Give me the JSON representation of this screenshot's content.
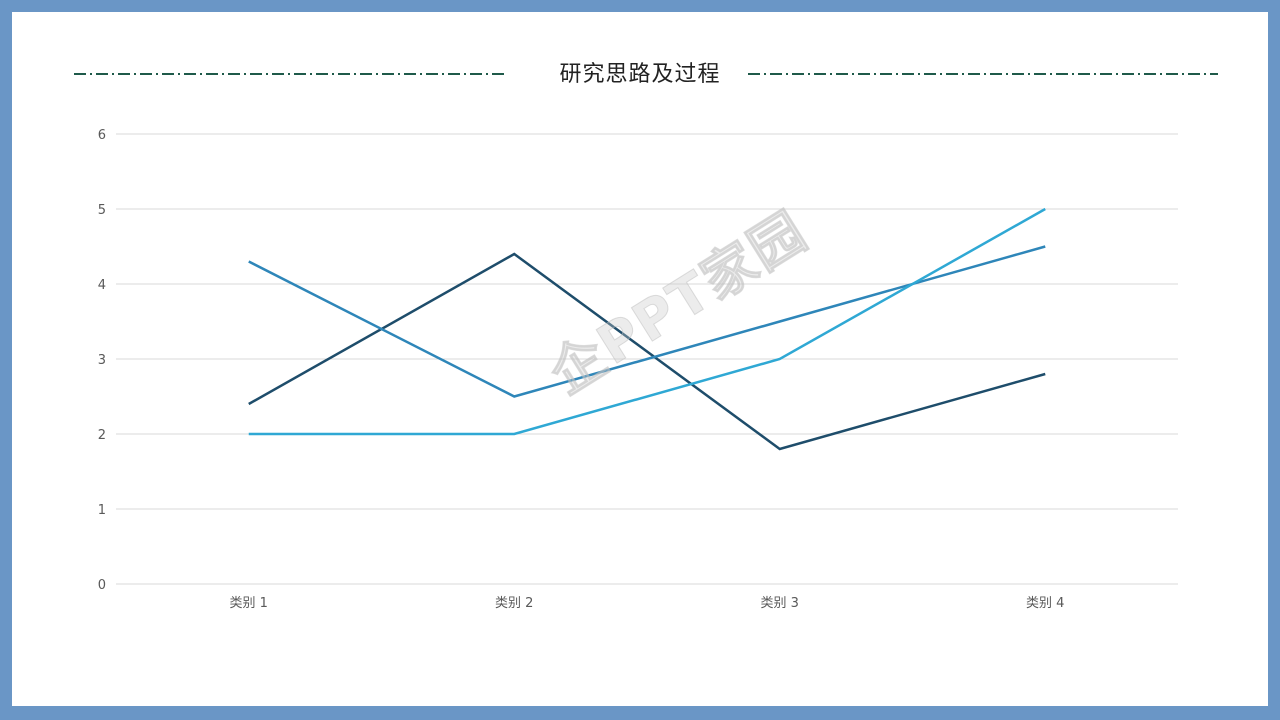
{
  "title": "研究思路及过程",
  "watermark": "企PPT家园",
  "colors": {
    "background_frame": "#6a96c6",
    "dash_line": "#1f5a4a",
    "grid": "#d9d9d9"
  },
  "chart_data": {
    "type": "line",
    "categories": [
      "类别 1",
      "类别 2",
      "类别 3",
      "类别 4"
    ],
    "ylim": [
      0,
      6
    ],
    "yticks": [
      0,
      1,
      2,
      3,
      4,
      5,
      6
    ],
    "grid": true,
    "legend": "none",
    "series": [
      {
        "values": [
          2.4,
          4.4,
          1.8,
          2.8
        ],
        "color": "#1e4d6b"
      },
      {
        "values": [
          4.3,
          2.5,
          3.5,
          4.5
        ],
        "color": "#2e86b9"
      },
      {
        "values": [
          2.0,
          2.0,
          3.0,
          5.0
        ],
        "color": "#2fa8d4"
      }
    ]
  }
}
